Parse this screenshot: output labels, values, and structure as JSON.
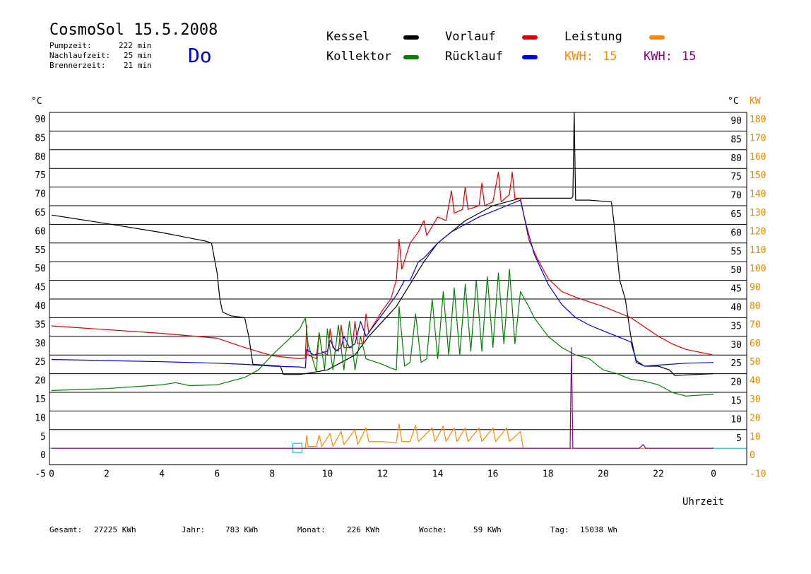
{
  "header": {
    "title": "CosmoSol 15.5.2008",
    "day": "Do",
    "stats": [
      {
        "label": "Pumpzeit:",
        "value": "222 min"
      },
      {
        "label": "Nachlaufzeit:",
        "value": "25 min"
      },
      {
        "label": "Brennerzeit:",
        "value": "21 min"
      }
    ]
  },
  "legend": {
    "items": [
      {
        "label": "Kessel",
        "color": "#000000"
      },
      {
        "label": "Vorlauf",
        "color": "#dd0000"
      },
      {
        "label": "Leistung",
        "color": "#ff8800"
      },
      {
        "label": "Kollektor",
        "color": "#008000"
      },
      {
        "label": "Rücklauf",
        "color": "#0000dd"
      }
    ],
    "kwh1": {
      "label": "KWH:",
      "value": "15",
      "color": "#ff8800"
    },
    "kwh2": {
      "label": "KWH:",
      "value": "15",
      "color": "#880088"
    }
  },
  "footer": {
    "gesamt": {
      "label": "Gesamt:",
      "value": "27225 KWh"
    },
    "jahr": {
      "label": "Jahr:",
      "value": "783 KWh"
    },
    "monat": {
      "label": "Monat:",
      "value": "226 KWh"
    },
    "woche": {
      "label": "Woche:",
      "value": "59 KWh"
    },
    "tag": {
      "label": "Tag:",
      "value": "15038 Wh"
    }
  },
  "chart_data": {
    "type": "line",
    "xlabel": "Uhrzeit",
    "x_ticks": [
      "0",
      "2",
      "4",
      "6",
      "8",
      "10",
      "12",
      "14",
      "16",
      "18",
      "20",
      "22",
      "0"
    ],
    "xlim": [
      0,
      24
    ],
    "ylabel_left": "°C",
    "ylabel_right": "°C",
    "ylabel_right2": "KW",
    "ylim": [
      -5,
      90
    ],
    "y_ticks_left": [
      "90",
      "85",
      "80",
      "75",
      "70",
      "65",
      "60",
      "55",
      "50",
      "45",
      "40",
      "35",
      "30",
      "25",
      "20",
      "15",
      "10",
      "5",
      "0",
      "-5"
    ],
    "y_ticks_right": [
      "90",
      "85",
      "80",
      "75",
      "70",
      "65",
      "60",
      "55",
      "50",
      "45",
      "40",
      "35",
      "30",
      "25",
      "20",
      "15",
      "10",
      "5"
    ],
    "y_ticks_kw": [
      "180",
      "170",
      "160",
      "150",
      "140",
      "130",
      "120",
      "110",
      "100",
      "90",
      "80",
      "70",
      "60",
      "50",
      "40",
      "30",
      "20",
      "10",
      "0",
      "-10"
    ],
    "grid": true,
    "series": [
      {
        "name": "Kessel",
        "color": "#000000",
        "points": [
          [
            0,
            62.5
          ],
          [
            2,
            60.2
          ],
          [
            4,
            57.8
          ],
          [
            5.6,
            55.5
          ],
          [
            5.8,
            55
          ],
          [
            6,
            47
          ],
          [
            6.1,
            40
          ],
          [
            6.2,
            36.5
          ],
          [
            6.5,
            35.5
          ],
          [
            7,
            35
          ],
          [
            7.15,
            30
          ],
          [
            7.3,
            22.5
          ],
          [
            8.3,
            22
          ],
          [
            8.4,
            19.8
          ],
          [
            9,
            19.8
          ],
          [
            9.2,
            20
          ],
          [
            9.6,
            20.5
          ],
          [
            10,
            21
          ],
          [
            10.5,
            23
          ],
          [
            11,
            25
          ],
          [
            11.5,
            30
          ],
          [
            12,
            34
          ],
          [
            12.5,
            38
          ],
          [
            13,
            44
          ],
          [
            13.5,
            50
          ],
          [
            14,
            55
          ],
          [
            14.5,
            58
          ],
          [
            15,
            61
          ],
          [
            15.5,
            63
          ],
          [
            16,
            65
          ],
          [
            16.5,
            66
          ],
          [
            17,
            67
          ],
          [
            18,
            67
          ],
          [
            18.85,
            67
          ],
          [
            18.9,
            67.5
          ],
          [
            18.95,
            90
          ],
          [
            19.0,
            66.5
          ],
          [
            19.5,
            66.5
          ],
          [
            20.3,
            66
          ],
          [
            20.4,
            60
          ],
          [
            20.6,
            45
          ],
          [
            20.8,
            40
          ],
          [
            21,
            30
          ],
          [
            21.2,
            23
          ],
          [
            21.5,
            22
          ],
          [
            22,
            22
          ],
          [
            22.4,
            21
          ],
          [
            22.6,
            19.5
          ],
          [
            24,
            20
          ]
        ]
      },
      {
        "name": "Vorlauf",
        "color": "#dd0000",
        "points": [
          [
            0,
            32.8
          ],
          [
            2,
            31.8
          ],
          [
            4,
            30.8
          ],
          [
            6,
            29.5
          ],
          [
            7,
            27
          ],
          [
            8,
            24.8
          ],
          [
            9,
            24
          ],
          [
            9.2,
            24.2
          ],
          [
            9.25,
            33
          ],
          [
            9.3,
            25
          ],
          [
            9.6,
            24
          ],
          [
            9.7,
            31
          ],
          [
            9.8,
            26
          ],
          [
            10,
            25
          ],
          [
            10.1,
            32
          ],
          [
            10.2,
            27
          ],
          [
            10.4,
            26
          ],
          [
            10.5,
            33
          ],
          [
            10.6,
            27
          ],
          [
            10.9,
            27
          ],
          [
            11,
            34
          ],
          [
            11.1,
            28
          ],
          [
            11.3,
            28
          ],
          [
            11.4,
            36
          ],
          [
            11.5,
            31
          ],
          [
            12,
            37
          ],
          [
            12.3,
            40
          ],
          [
            12.5,
            45
          ],
          [
            12.6,
            56
          ],
          [
            12.7,
            48
          ],
          [
            13,
            55
          ],
          [
            13.3,
            58
          ],
          [
            13.5,
            61
          ],
          [
            13.6,
            57
          ],
          [
            14,
            62
          ],
          [
            14.3,
            61
          ],
          [
            14.5,
            69
          ],
          [
            14.6,
            63
          ],
          [
            14.9,
            64
          ],
          [
            15,
            70
          ],
          [
            15.1,
            64
          ],
          [
            15.5,
            65
          ],
          [
            15.6,
            71
          ],
          [
            15.7,
            65
          ],
          [
            16,
            66
          ],
          [
            16.2,
            74
          ],
          [
            16.3,
            66
          ],
          [
            16.6,
            68
          ],
          [
            16.7,
            74
          ],
          [
            16.8,
            67
          ],
          [
            17,
            67
          ],
          [
            17.3,
            56
          ],
          [
            17.6,
            51
          ],
          [
            18,
            45.5
          ],
          [
            18.5,
            42
          ],
          [
            19,
            40.5
          ],
          [
            20,
            38
          ],
          [
            20.5,
            36.5
          ],
          [
            21,
            35
          ],
          [
            21.5,
            32.5
          ],
          [
            22,
            30
          ],
          [
            22.5,
            28
          ],
          [
            23,
            26.5
          ],
          [
            24,
            25
          ]
        ]
      },
      {
        "name": "Rücklauf",
        "color": "#0000dd",
        "points": [
          [
            0,
            23.8
          ],
          [
            2,
            23.5
          ],
          [
            4,
            23.2
          ],
          [
            6,
            22.8
          ],
          [
            7,
            22.5
          ],
          [
            8,
            22
          ],
          [
            9,
            21.8
          ],
          [
            9.2,
            21.5
          ],
          [
            9.25,
            26.5
          ],
          [
            9.5,
            25
          ],
          [
            10,
            26
          ],
          [
            10.1,
            29
          ],
          [
            10.3,
            26
          ],
          [
            10.5,
            27
          ],
          [
            10.6,
            30
          ],
          [
            10.8,
            27
          ],
          [
            11,
            28
          ],
          [
            11.2,
            34
          ],
          [
            11.4,
            30
          ],
          [
            11.6,
            32
          ],
          [
            12,
            36
          ],
          [
            12.5,
            41
          ],
          [
            12.8,
            45
          ],
          [
            13,
            45
          ],
          [
            13.3,
            50
          ],
          [
            13.5,
            51
          ],
          [
            14,
            55
          ],
          [
            14.5,
            58
          ],
          [
            15,
            60
          ],
          [
            15.5,
            62
          ],
          [
            16,
            63.5
          ],
          [
            16.5,
            65
          ],
          [
            17,
            66.5
          ],
          [
            17.2,
            60
          ],
          [
            17.5,
            52
          ],
          [
            18,
            44
          ],
          [
            18.5,
            38.5
          ],
          [
            19,
            35
          ],
          [
            19.5,
            33
          ],
          [
            20,
            31.5
          ],
          [
            20.5,
            30
          ],
          [
            21,
            28.5
          ],
          [
            21.2,
            23.5
          ],
          [
            21.5,
            22
          ],
          [
            22,
            22.3
          ],
          [
            23,
            22.8
          ],
          [
            24,
            23
          ]
        ]
      },
      {
        "name": "Kollektor",
        "color": "#008000",
        "points": [
          [
            0,
            15.5
          ],
          [
            2,
            16
          ],
          [
            4,
            17
          ],
          [
            4.5,
            17.6
          ],
          [
            5,
            16.8
          ],
          [
            6,
            17
          ],
          [
            7,
            19
          ],
          [
            7.5,
            21
          ],
          [
            8,
            25
          ],
          [
            8.5,
            28.5
          ],
          [
            9,
            32
          ],
          [
            9.2,
            35
          ],
          [
            9.3,
            28
          ],
          [
            9.6,
            20.5
          ],
          [
            9.7,
            31
          ],
          [
            9.9,
            21
          ],
          [
            10,
            32
          ],
          [
            10.2,
            21
          ],
          [
            10.4,
            33
          ],
          [
            10.6,
            21
          ],
          [
            10.8,
            34
          ],
          [
            11,
            21
          ],
          [
            11.2,
            30
          ],
          [
            11.4,
            24
          ],
          [
            11.8,
            23
          ],
          [
            12,
            22.5
          ],
          [
            12.3,
            21.5
          ],
          [
            12.5,
            21
          ],
          [
            12.6,
            38
          ],
          [
            12.8,
            22
          ],
          [
            13,
            23
          ],
          [
            13.2,
            36
          ],
          [
            13.4,
            23
          ],
          [
            13.6,
            24
          ],
          [
            13.8,
            40
          ],
          [
            14,
            24
          ],
          [
            14.2,
            42
          ],
          [
            14.4,
            25
          ],
          [
            14.6,
            43
          ],
          [
            14.8,
            25
          ],
          [
            15,
            44
          ],
          [
            15.2,
            26
          ],
          [
            15.4,
            45
          ],
          [
            15.6,
            26
          ],
          [
            15.8,
            46
          ],
          [
            16,
            27
          ],
          [
            16.2,
            47
          ],
          [
            16.4,
            28
          ],
          [
            16.6,
            48
          ],
          [
            16.8,
            28
          ],
          [
            17,
            42
          ],
          [
            17.3,
            38
          ],
          [
            17.5,
            35
          ],
          [
            18,
            30
          ],
          [
            18.5,
            27
          ],
          [
            19,
            25
          ],
          [
            19.5,
            24
          ],
          [
            20,
            21
          ],
          [
            20.5,
            20
          ],
          [
            21,
            18.5
          ],
          [
            21.5,
            18
          ],
          [
            22,
            17
          ],
          [
            22.5,
            15
          ],
          [
            23,
            14
          ],
          [
            24,
            14.5
          ]
        ]
      },
      {
        "name": "Leistung",
        "color": "#ff8800",
        "points": [
          [
            0,
            0
          ],
          [
            9.2,
            0
          ],
          [
            9.25,
            3.5
          ],
          [
            9.3,
            0.5
          ],
          [
            9.6,
            0.5
          ],
          [
            9.7,
            3.5
          ],
          [
            9.8,
            0.5
          ],
          [
            10.1,
            4
          ],
          [
            10.2,
            0.5
          ],
          [
            10.5,
            4.5
          ],
          [
            10.6,
            1
          ],
          [
            11,
            5
          ],
          [
            11.1,
            1
          ],
          [
            11.4,
            5.5
          ],
          [
            11.5,
            1.8
          ],
          [
            12,
            1.8
          ],
          [
            12.5,
            1.5
          ],
          [
            12.6,
            6.5
          ],
          [
            12.7,
            1.8
          ],
          [
            13,
            1.8
          ],
          [
            13.2,
            6.2
          ],
          [
            13.3,
            1.8
          ],
          [
            13.8,
            5.5
          ],
          [
            13.9,
            1.8
          ],
          [
            14.2,
            6
          ],
          [
            14.3,
            1.8
          ],
          [
            14.6,
            5.5
          ],
          [
            14.7,
            1.8
          ],
          [
            15,
            5.5
          ],
          [
            15.1,
            1.8
          ],
          [
            15.5,
            5.5
          ],
          [
            15.6,
            1.8
          ],
          [
            16,
            5.5
          ],
          [
            16.1,
            1.8
          ],
          [
            16.5,
            5.5
          ],
          [
            16.6,
            1.8
          ],
          [
            17,
            4.5
          ],
          [
            17.1,
            0
          ],
          [
            24,
            0
          ]
        ]
      },
      {
        "name": "Leistung (Ende)",
        "color": "#880088",
        "points": [
          [
            0,
            0
          ],
          [
            18.8,
            0
          ],
          [
            18.85,
            27
          ],
          [
            18.9,
            0
          ],
          [
            21.3,
            0
          ],
          [
            21.45,
            1
          ],
          [
            21.55,
            0
          ],
          [
            24,
            0
          ]
        ]
      }
    ]
  }
}
